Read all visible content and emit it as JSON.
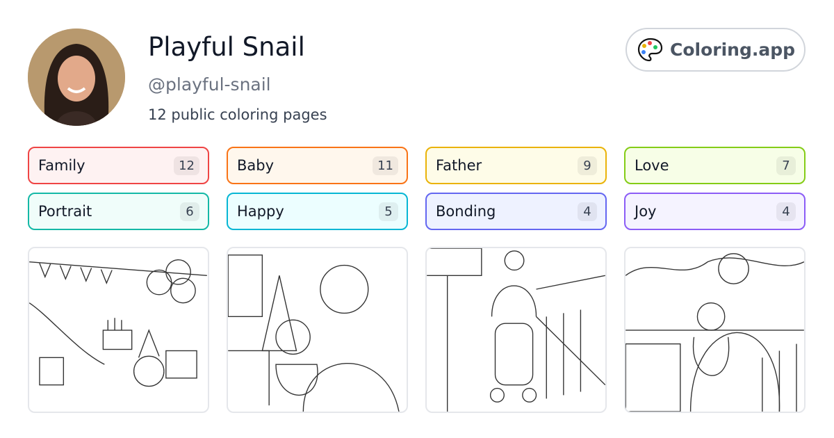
{
  "profile": {
    "name": "Playful Snail",
    "handle": "@playful-snail",
    "count_text": "12 public coloring pages"
  },
  "brand": {
    "label": "Coloring.app",
    "icon": "palette-icon"
  },
  "tags": [
    {
      "label": "Family",
      "count": "12",
      "color": "#ef4444",
      "bg": "#fef2f2"
    },
    {
      "label": "Baby",
      "count": "11",
      "color": "#f97316",
      "bg": "#fff7ed"
    },
    {
      "label": "Father",
      "count": "9",
      "color": "#eab308",
      "bg": "#fefce8"
    },
    {
      "label": "Love",
      "count": "7",
      "color": "#84cc16",
      "bg": "#f7fee7"
    },
    {
      "label": "Portrait",
      "count": "6",
      "color": "#14b8a6",
      "bg": "#f0fdfa"
    },
    {
      "label": "Happy",
      "count": "5",
      "color": "#06b6d4",
      "bg": "#ecfeff"
    },
    {
      "label": "Bonding",
      "count": "4",
      "color": "#6366f1",
      "bg": "#eef2ff"
    },
    {
      "label": "Joy",
      "count": "4",
      "color": "#8b5cf6",
      "bg": "#f5f3ff"
    }
  ]
}
